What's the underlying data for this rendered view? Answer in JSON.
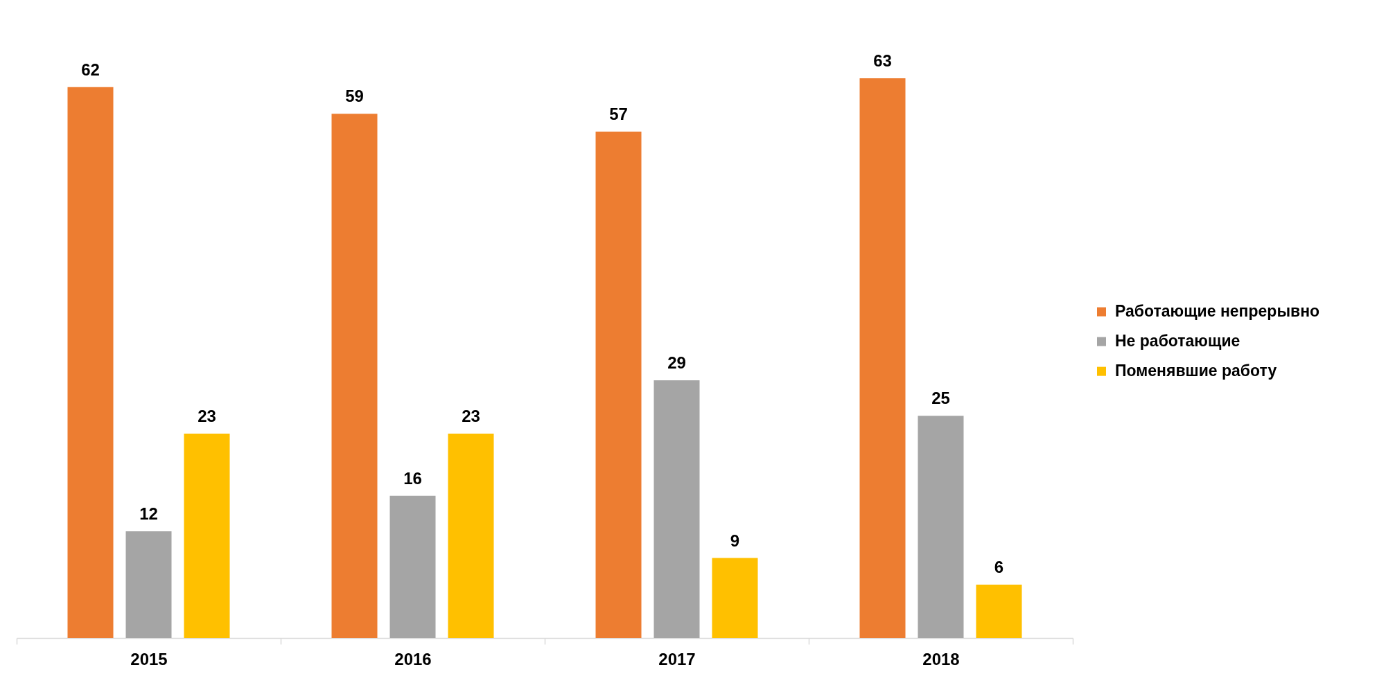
{
  "chart_data": {
    "type": "bar",
    "categories": [
      "2015",
      "2016",
      "2017",
      "2018"
    ],
    "series": [
      {
        "name": "Работающие непрерывно",
        "color": "#ed7d31",
        "values": [
          62,
          59,
          57,
          63
        ]
      },
      {
        "name": "Не работающие",
        "color": "#a5a5a5",
        "values": [
          12,
          16,
          29,
          25
        ]
      },
      {
        "name": "Поменявшие работу",
        "color": "#ffc000",
        "values": [
          23,
          23,
          9,
          6
        ]
      }
    ],
    "data_labels": true,
    "legend": "right",
    "grid": false,
    "tick_labels": "x"
  }
}
